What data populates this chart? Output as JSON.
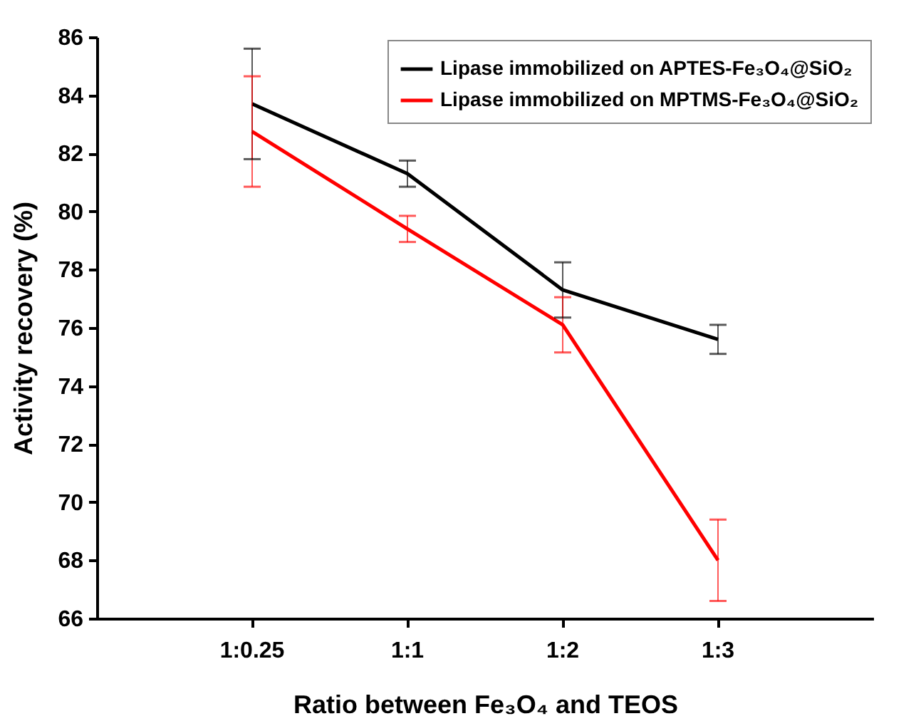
{
  "chart_data": {
    "type": "line",
    "xlabel": "Ratio between Fe₃O₄ and TEOS",
    "ylabel": "Activity recovery (%)",
    "categories": [
      "1:0.25",
      "1:1",
      "1:2",
      "1:3"
    ],
    "series": [
      {
        "name": "Lipase immobilized on APTES-Fe₃O₄@SiO₂",
        "color": "#000000",
        "values": [
          83.7,
          81.3,
          77.3,
          75.6
        ],
        "errors": [
          1.9,
          0.45,
          0.95,
          0.5
        ]
      },
      {
        "name": "Lipase immobilized on MPTMS-Fe₃O₄@SiO₂",
        "color": "#ff0000",
        "values": [
          82.75,
          79.4,
          76.1,
          68.0
        ],
        "errors": [
          1.9,
          0.45,
          0.95,
          1.4
        ]
      }
    ],
    "ylim": [
      66,
      86
    ],
    "yticks": [
      66,
      68,
      70,
      72,
      74,
      76,
      78,
      80,
      82,
      84,
      86
    ],
    "legend": "top right"
  }
}
